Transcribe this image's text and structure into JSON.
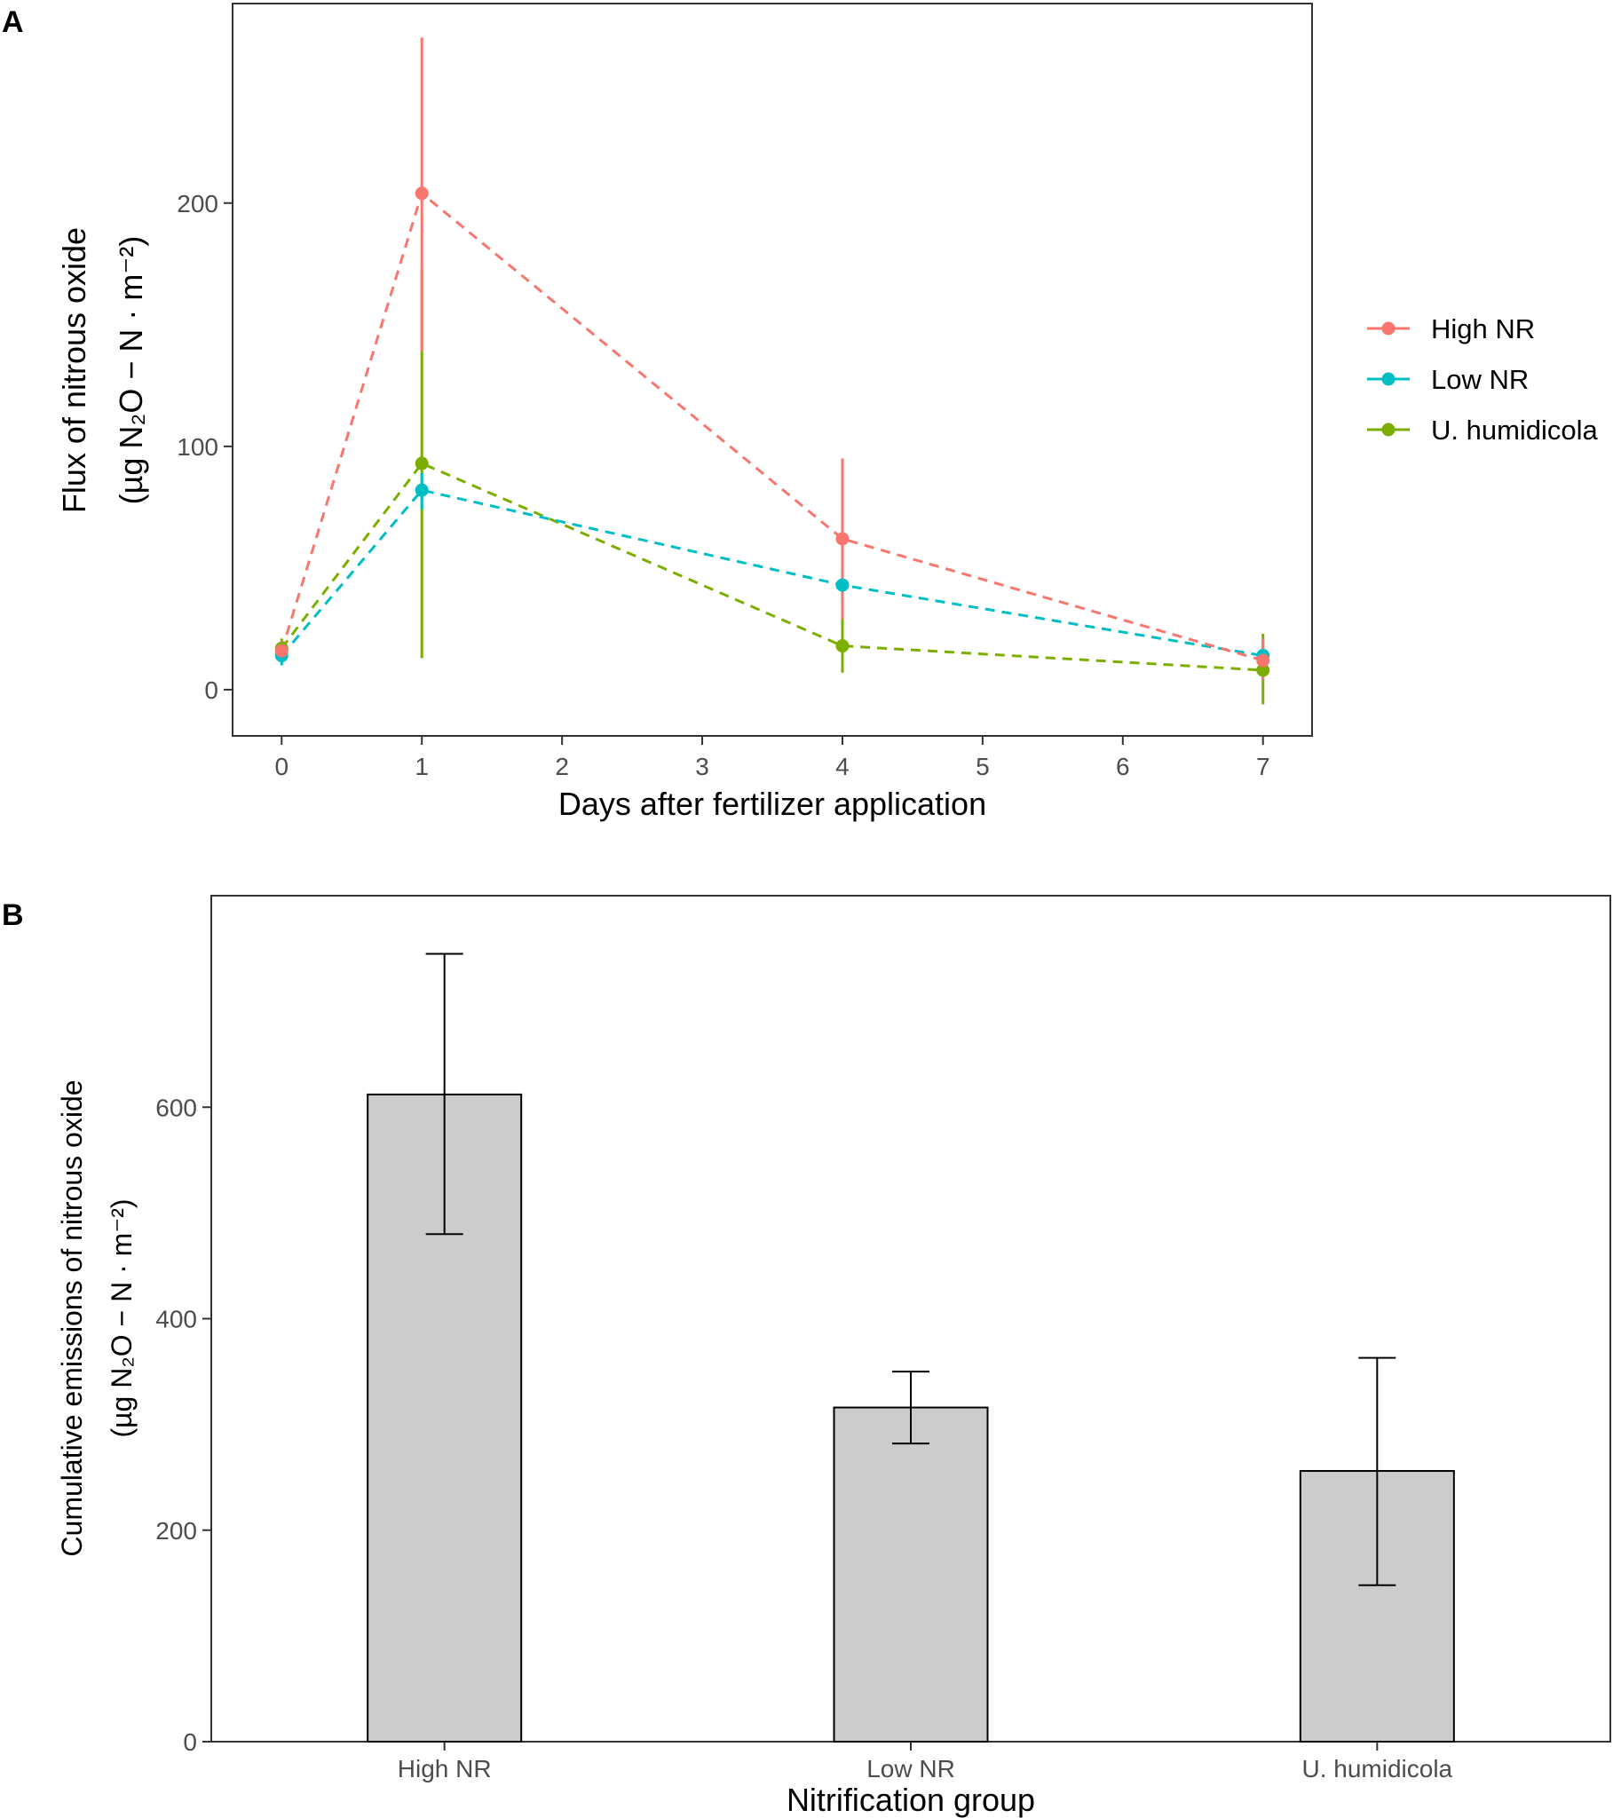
{
  "colors": {
    "high": "#F8766D",
    "low": "#00BFC4",
    "uh": "#7CAE00",
    "bar_fill": "#CCCCCC",
    "bar_stroke": "#000000"
  },
  "chart_data": [
    {
      "panel": "A",
      "type": "line",
      "xlabel": "Days after fertilizer application",
      "ylabel_line1": "Flux of nitrous oxide",
      "ylabel_line2": "(µg N₂O − N · m⁻²)",
      "xlim": [
        -0.35,
        7.35
      ],
      "ylim": [
        -19,
        282
      ],
      "x_ticks": [
        0,
        1,
        2,
        3,
        4,
        5,
        6,
        7
      ],
      "x_tick_labels": [
        "0",
        "1",
        "2",
        "3",
        "4",
        "5",
        "6",
        "7"
      ],
      "y_ticks": [
        0,
        100,
        200
      ],
      "y_tick_labels": [
        "0",
        "100",
        "200"
      ],
      "legend_position": "right",
      "series": [
        {
          "name": "High NR",
          "color_key": "high",
          "x": [
            0,
            1,
            4,
            7
          ],
          "y": [
            16,
            204,
            62,
            12
          ],
          "err_low": [
            12,
            139,
            29,
            4
          ],
          "err_high": [
            20,
            268,
            95,
            21
          ]
        },
        {
          "name": "Low NR",
          "color_key": "low",
          "x": [
            0,
            1,
            4,
            7
          ],
          "y": [
            14,
            82,
            43,
            14
          ],
          "err_low": [
            10,
            74,
            35,
            8
          ],
          "err_high": [
            18,
            89,
            51,
            20
          ]
        },
        {
          "name": "U. humidicola",
          "color_key": "uh",
          "x": [
            0,
            1,
            4,
            7
          ],
          "y": [
            17,
            93,
            18,
            8
          ],
          "err_low": [
            13,
            13,
            7,
            -6
          ],
          "err_high": [
            21,
            173,
            30,
            23
          ]
        }
      ]
    },
    {
      "panel": "B",
      "type": "bar",
      "xlabel": "Nitrification group",
      "ylabel_line1": "Cumulative emissions of nitrous oxide",
      "ylabel_line2": "(µg N₂O − N · m⁻²)",
      "categories": [
        "High NR",
        "Low NR",
        "U. humidicola"
      ],
      "values": [
        612,
        316,
        256
      ],
      "err_low": [
        480,
        282,
        148
      ],
      "err_high": [
        745,
        350,
        363
      ],
      "ylim": [
        0,
        800
      ],
      "y_ticks": [
        0,
        200,
        400,
        600
      ],
      "y_tick_labels": [
        "0",
        "200",
        "400",
        "600"
      ]
    }
  ]
}
